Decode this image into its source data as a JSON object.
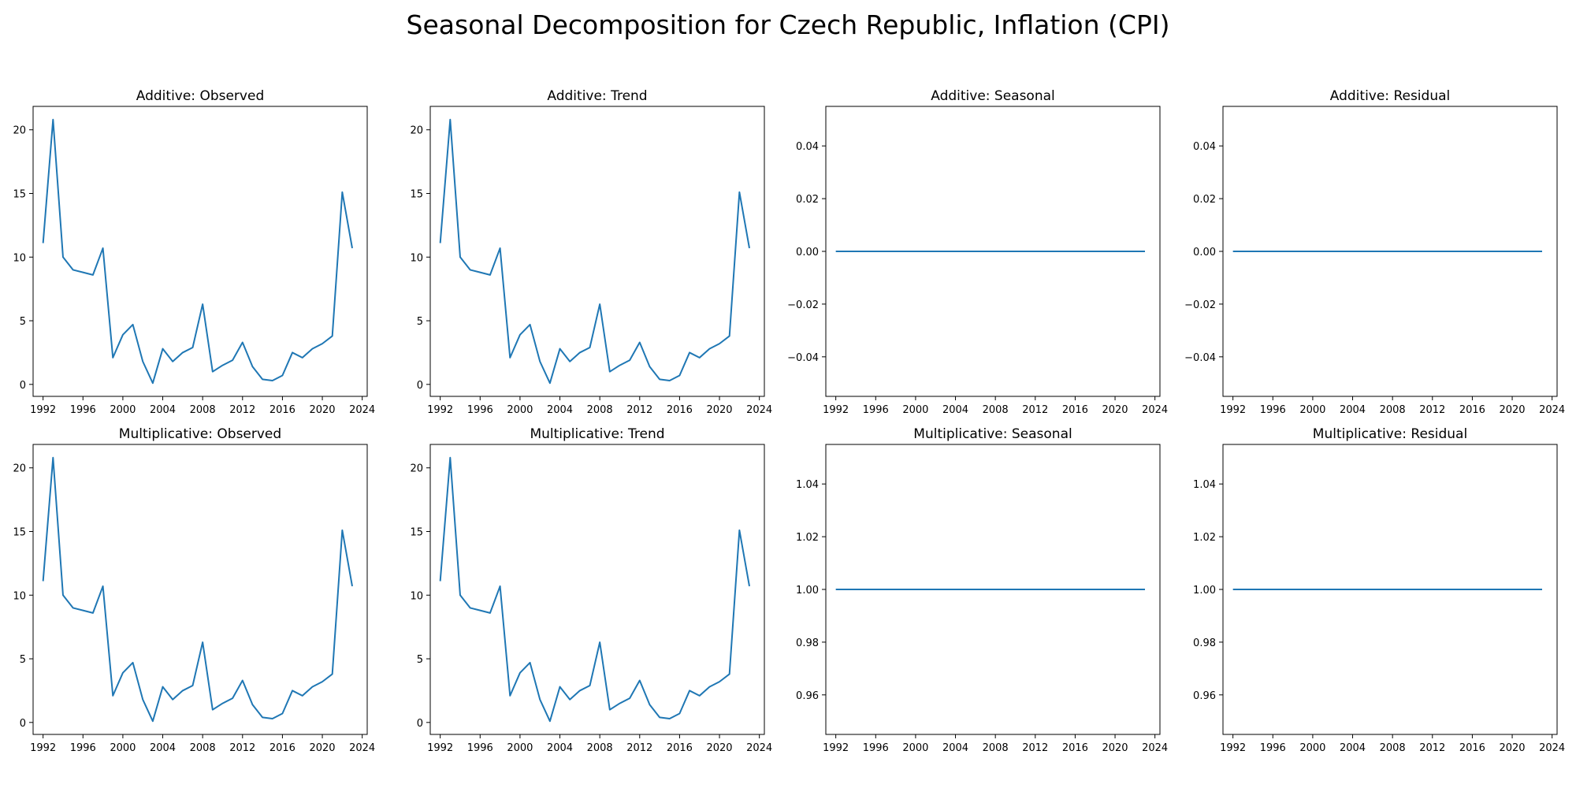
{
  "figure": {
    "title": "Seasonal Decomposition for Czech Republic, Inflation (CPI)"
  },
  "colors": {
    "line": "#1f77b4",
    "axes": "#000000"
  },
  "chart_data": [
    {
      "type": "line",
      "title": "Additive: Observed",
      "x": [
        1992,
        1993,
        1994,
        1995,
        1996,
        1997,
        1998,
        1999,
        2000,
        2001,
        2002,
        2003,
        2004,
        2005,
        2006,
        2007,
        2008,
        2009,
        2010,
        2011,
        2012,
        2013,
        2014,
        2015,
        2016,
        2017,
        2018,
        2019,
        2020,
        2021,
        2022,
        2023
      ],
      "values": [
        11.1,
        20.8,
        10.0,
        9.0,
        8.8,
        8.6,
        10.7,
        2.1,
        3.9,
        4.7,
        1.8,
        0.1,
        2.8,
        1.8,
        2.5,
        2.9,
        6.3,
        1.0,
        1.5,
        1.9,
        3.3,
        1.4,
        0.4,
        0.3,
        0.7,
        2.5,
        2.1,
        2.8,
        3.2,
        3.8,
        15.1,
        10.7
      ],
      "xlim": [
        1991.0,
        2024.5
      ],
      "ylim": [
        -0.94,
        21.84
      ],
      "xticks": [
        "1992",
        "1996",
        "2000",
        "2004",
        "2008",
        "2012",
        "2016",
        "2020",
        "2024"
      ],
      "yticks": [
        "0",
        "5",
        "10",
        "15",
        "20"
      ]
    },
    {
      "type": "line",
      "title": "Additive: Trend",
      "x": [
        1992,
        1993,
        1994,
        1995,
        1996,
        1997,
        1998,
        1999,
        2000,
        2001,
        2002,
        2003,
        2004,
        2005,
        2006,
        2007,
        2008,
        2009,
        2010,
        2011,
        2012,
        2013,
        2014,
        2015,
        2016,
        2017,
        2018,
        2019,
        2020,
        2021,
        2022,
        2023
      ],
      "values": [
        11.1,
        20.8,
        10.0,
        9.0,
        8.8,
        8.6,
        10.7,
        2.1,
        3.9,
        4.7,
        1.8,
        0.1,
        2.8,
        1.8,
        2.5,
        2.9,
        6.3,
        1.0,
        1.5,
        1.9,
        3.3,
        1.4,
        0.4,
        0.3,
        0.7,
        2.5,
        2.1,
        2.8,
        3.2,
        3.8,
        15.1,
        10.7
      ],
      "xlim": [
        1991.0,
        2024.5
      ],
      "ylim": [
        -0.94,
        21.84
      ],
      "xticks": [
        "1992",
        "1996",
        "2000",
        "2004",
        "2008",
        "2012",
        "2016",
        "2020",
        "2024"
      ],
      "yticks": [
        "0",
        "5",
        "10",
        "15",
        "20"
      ]
    },
    {
      "type": "line",
      "title": "Additive: Seasonal",
      "x": [
        1992,
        2023
      ],
      "values": [
        0,
        0
      ],
      "xlim": [
        1991.0,
        2024.5
      ],
      "ylim": [
        -0.055,
        0.055
      ],
      "xticks": [
        "1992",
        "1996",
        "2000",
        "2004",
        "2008",
        "2012",
        "2016",
        "2020",
        "2024"
      ],
      "yticks": [
        "−0.04",
        "−0.02",
        "0.00",
        "0.02",
        "0.04"
      ]
    },
    {
      "type": "line",
      "title": "Additive: Residual",
      "x": [
        1992,
        2023
      ],
      "values": [
        0,
        0
      ],
      "xlim": [
        1991.0,
        2024.5
      ],
      "ylim": [
        -0.055,
        0.055
      ],
      "xticks": [
        "1992",
        "1996",
        "2000",
        "2004",
        "2008",
        "2012",
        "2016",
        "2020",
        "2024"
      ],
      "yticks": [
        "−0.04",
        "−0.02",
        "0.00",
        "0.02",
        "0.04"
      ]
    },
    {
      "type": "line",
      "title": "Multiplicative: Observed",
      "x": [
        1992,
        1993,
        1994,
        1995,
        1996,
        1997,
        1998,
        1999,
        2000,
        2001,
        2002,
        2003,
        2004,
        2005,
        2006,
        2007,
        2008,
        2009,
        2010,
        2011,
        2012,
        2013,
        2014,
        2015,
        2016,
        2017,
        2018,
        2019,
        2020,
        2021,
        2022,
        2023
      ],
      "values": [
        11.1,
        20.8,
        10.0,
        9.0,
        8.8,
        8.6,
        10.7,
        2.1,
        3.9,
        4.7,
        1.8,
        0.1,
        2.8,
        1.8,
        2.5,
        2.9,
        6.3,
        1.0,
        1.5,
        1.9,
        3.3,
        1.4,
        0.4,
        0.3,
        0.7,
        2.5,
        2.1,
        2.8,
        3.2,
        3.8,
        15.1,
        10.7
      ],
      "xlim": [
        1991.0,
        2024.5
      ],
      "ylim": [
        -0.94,
        21.84
      ],
      "xticks": [
        "1992",
        "1996",
        "2000",
        "2004",
        "2008",
        "2012",
        "2016",
        "2020",
        "2024"
      ],
      "yticks": [
        "0",
        "5",
        "10",
        "15",
        "20"
      ]
    },
    {
      "type": "line",
      "title": "Multiplicative: Trend",
      "x": [
        1992,
        1993,
        1994,
        1995,
        1996,
        1997,
        1998,
        1999,
        2000,
        2001,
        2002,
        2003,
        2004,
        2005,
        2006,
        2007,
        2008,
        2009,
        2010,
        2011,
        2012,
        2013,
        2014,
        2015,
        2016,
        2017,
        2018,
        2019,
        2020,
        2021,
        2022,
        2023
      ],
      "values": [
        11.1,
        20.8,
        10.0,
        9.0,
        8.8,
        8.6,
        10.7,
        2.1,
        3.9,
        4.7,
        1.8,
        0.1,
        2.8,
        1.8,
        2.5,
        2.9,
        6.3,
        1.0,
        1.5,
        1.9,
        3.3,
        1.4,
        0.4,
        0.3,
        0.7,
        2.5,
        2.1,
        2.8,
        3.2,
        3.8,
        15.1,
        10.7
      ],
      "xlim": [
        1991.0,
        2024.5
      ],
      "ylim": [
        -0.94,
        21.84
      ],
      "xticks": [
        "1992",
        "1996",
        "2000",
        "2004",
        "2008",
        "2012",
        "2016",
        "2020",
        "2024"
      ],
      "yticks": [
        "0",
        "5",
        "10",
        "15",
        "20"
      ]
    },
    {
      "type": "line",
      "title": "Multiplicative: Seasonal",
      "x": [
        1992,
        2023
      ],
      "values": [
        1,
        1
      ],
      "xlim": [
        1991.0,
        2024.5
      ],
      "ylim": [
        0.945,
        1.055
      ],
      "xticks": [
        "1992",
        "1996",
        "2000",
        "2004",
        "2008",
        "2012",
        "2016",
        "2020",
        "2024"
      ],
      "yticks": [
        "0.96",
        "0.98",
        "1.00",
        "1.02",
        "1.04"
      ]
    },
    {
      "type": "line",
      "title": "Multiplicative: Residual",
      "x": [
        1992,
        2023
      ],
      "values": [
        1,
        1
      ],
      "xlim": [
        1991.0,
        2024.5
      ],
      "ylim": [
        0.945,
        1.055
      ],
      "xticks": [
        "1992",
        "1996",
        "2000",
        "2004",
        "2008",
        "2012",
        "2016",
        "2020",
        "2024"
      ],
      "yticks": [
        "0.96",
        "0.98",
        "1.00",
        "1.02",
        "1.04"
      ]
    }
  ]
}
